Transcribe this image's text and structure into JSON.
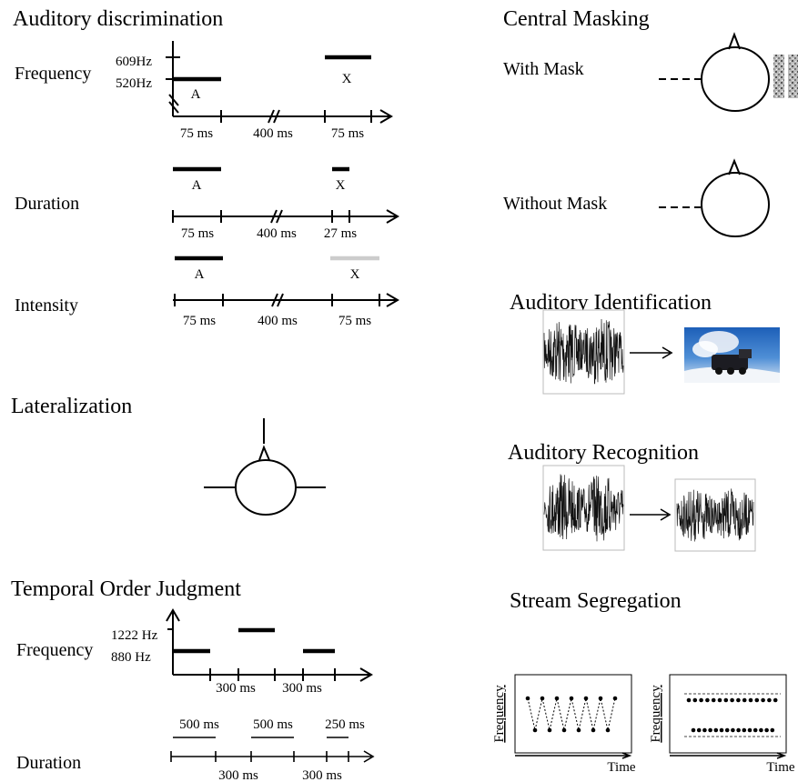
{
  "auditory_discrimination": {
    "title": "Auditory discrimination",
    "frequency": {
      "label": "Frequency",
      "high": "609Hz",
      "low": "520Hz",
      "a": "A",
      "x": "X",
      "times": [
        "75 ms",
        "400 ms",
        "75 ms"
      ]
    },
    "duration": {
      "label": "Duration",
      "a": "A",
      "x": "X",
      "times": [
        "75 ms",
        "400 ms",
        "27 ms"
      ]
    },
    "intensity": {
      "label": "Intensity",
      "a": "A",
      "x": "X",
      "times": [
        "75 ms",
        "400 ms",
        "75 ms"
      ]
    }
  },
  "lateralization": {
    "title": "Lateralization"
  },
  "temporal_order": {
    "title": "Temporal Order Judgment",
    "frequency": {
      "label": "Frequency",
      "high": "1222 Hz",
      "low": "880 Hz",
      "times": [
        "300 ms",
        "300 ms"
      ]
    },
    "duration": {
      "label": "Duration",
      "tones": [
        "500 ms",
        "500 ms",
        "250 ms"
      ],
      "times": [
        "300 ms",
        "300 ms"
      ]
    }
  },
  "central_masking": {
    "title": "Central Masking",
    "with_mask": "With Mask",
    "without_mask": "Without Mask"
  },
  "auditory_identification": {
    "title": "Auditory Identification"
  },
  "auditory_recognition": {
    "title": "Auditory Recognition"
  },
  "stream_segregation": {
    "title": "Stream Segregation",
    "panels": [
      {
        "y_label": "Frequency",
        "x_label": "Time"
      },
      {
        "y_label": "Frequency",
        "x_label": "Time"
      }
    ]
  }
}
